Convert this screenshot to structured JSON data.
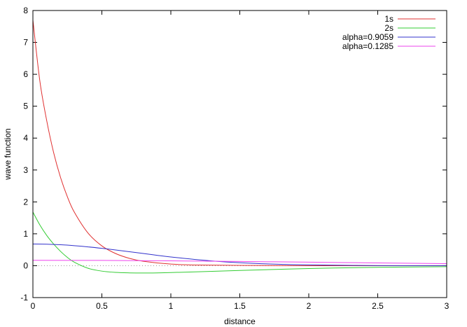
{
  "chart_data": {
    "type": "line",
    "xlabel": "distance",
    "ylabel": "wave function",
    "xlim": [
      0,
      3
    ],
    "ylim": [
      -1,
      8
    ],
    "x_ticks": [
      "0",
      "0.5",
      "1",
      "1.5",
      "2",
      "2.5",
      "3"
    ],
    "y_ticks": [
      "-1",
      "0",
      "1",
      "2",
      "3",
      "4",
      "5",
      "6",
      "7",
      "8"
    ],
    "legend_position": "top-right",
    "grid": false,
    "zero_line": true,
    "series": [
      {
        "name": "1s",
        "color": "#e03030",
        "x": [
          0,
          0.05,
          0.1,
          0.15,
          0.2,
          0.25,
          0.3,
          0.4,
          0.5,
          0.6,
          0.7,
          0.8,
          1.0,
          1.2,
          1.5,
          2.0,
          2.5,
          3.0
        ],
        "y": [
          7.7,
          5.8,
          4.55,
          3.55,
          2.77,
          2.16,
          1.68,
          1.02,
          0.62,
          0.38,
          0.23,
          0.14,
          0.05,
          0.02,
          0.01,
          0.0,
          0.0,
          0.0
        ]
      },
      {
        "name": "2s",
        "color": "#33cc33",
        "x": [
          0,
          0.05,
          0.1,
          0.15,
          0.2,
          0.25,
          0.3,
          0.4,
          0.5,
          0.6,
          0.7,
          0.8,
          0.9,
          1.0,
          1.2,
          1.5,
          2.0,
          2.5,
          3.0
        ],
        "y": [
          1.68,
          1.28,
          0.95,
          0.68,
          0.45,
          0.26,
          0.11,
          -0.08,
          -0.17,
          -0.21,
          -0.225,
          -0.23,
          -0.225,
          -0.215,
          -0.19,
          -0.15,
          -0.09,
          -0.05,
          -0.03
        ]
      },
      {
        "name": "alpha=0.9059",
        "color": "#3333cc",
        "x": [
          0,
          0.1,
          0.2,
          0.3,
          0.4,
          0.5,
          0.6,
          0.7,
          0.8,
          0.9,
          1.0,
          1.2,
          1.4,
          1.6,
          1.8,
          2.0,
          2.5,
          3.0
        ],
        "y": [
          0.68,
          0.674,
          0.656,
          0.627,
          0.59,
          0.544,
          0.493,
          0.438,
          0.382,
          0.326,
          0.274,
          0.184,
          0.118,
          0.073,
          0.043,
          0.025,
          0.005,
          0.001
        ]
      },
      {
        "name": "alpha=0.1285",
        "color": "#ee44ee",
        "x": [
          0,
          0.5,
          1.0,
          1.5,
          2.0,
          2.5,
          3.0
        ],
        "y": [
          0.17,
          0.165,
          0.152,
          0.132,
          0.11,
          0.087,
          0.065
        ]
      }
    ]
  }
}
